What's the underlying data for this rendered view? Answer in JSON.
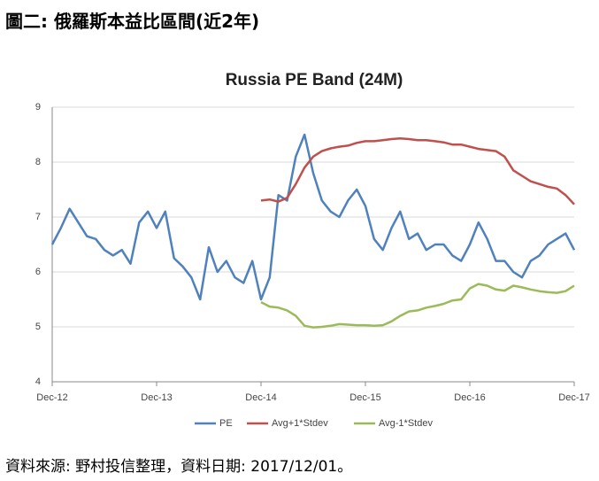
{
  "header": {
    "title": "圖二: 俄羅斯本益比區間(近2年)"
  },
  "chart_data": {
    "type": "line",
    "title": "Russia PE Band (24M)",
    "categories": [
      "Dec-12",
      null,
      null,
      null,
      null,
      null,
      null,
      null,
      null,
      null,
      null,
      null,
      "Dec-13",
      null,
      null,
      null,
      null,
      null,
      null,
      null,
      null,
      null,
      null,
      null,
      "Dec-14",
      null,
      null,
      null,
      null,
      null,
      null,
      null,
      null,
      null,
      null,
      null,
      "Dec-15",
      null,
      null,
      null,
      null,
      null,
      null,
      null,
      null,
      null,
      null,
      null,
      "Dec-16",
      null,
      null,
      null,
      null,
      null,
      null,
      null,
      null,
      null,
      null,
      null,
      "Dec-17"
    ],
    "ylim": [
      4,
      9
    ],
    "yticks": [
      4,
      5,
      6,
      7,
      8,
      9
    ],
    "grid": true,
    "legend": "bottom",
    "series": [
      {
        "name": "PE",
        "color": "#4f81bd",
        "values": [
          6.5,
          6.8,
          7.15,
          6.9,
          6.65,
          6.6,
          6.4,
          6.3,
          6.4,
          6.15,
          6.9,
          7.1,
          6.8,
          7.1,
          6.25,
          6.1,
          5.9,
          5.5,
          6.45,
          6.0,
          6.2,
          5.9,
          5.8,
          6.2,
          5.5,
          5.9,
          7.4,
          7.3,
          8.1,
          8.5,
          7.8,
          7.3,
          7.1,
          7.0,
          7.3,
          7.5,
          7.2,
          6.6,
          6.4,
          6.8,
          7.1,
          6.6,
          6.7,
          6.4,
          6.5,
          6.5,
          6.3,
          6.2,
          6.5,
          6.9,
          6.6,
          6.2,
          6.2,
          6.0,
          5.9,
          6.2,
          6.3,
          6.5,
          6.6,
          6.7,
          6.4
        ]
      },
      {
        "name": "Avg+1*Stdev",
        "color": "#c0504d",
        "values": [
          null,
          null,
          null,
          null,
          null,
          null,
          null,
          null,
          null,
          null,
          null,
          null,
          null,
          null,
          null,
          null,
          null,
          null,
          null,
          null,
          null,
          null,
          null,
          null,
          7.3,
          7.32,
          7.28,
          7.35,
          7.6,
          7.9,
          8.1,
          8.2,
          8.25,
          8.28,
          8.3,
          8.35,
          8.38,
          8.38,
          8.4,
          8.42,
          8.43,
          8.42,
          8.4,
          8.4,
          8.38,
          8.36,
          8.32,
          8.32,
          8.28,
          8.24,
          8.22,
          8.2,
          8.1,
          7.85,
          7.75,
          7.65,
          7.6,
          7.55,
          7.52,
          7.4,
          7.23
        ]
      },
      {
        "name": "Avg-1*Stdev",
        "color": "#9bbb59",
        "values": [
          null,
          null,
          null,
          null,
          null,
          null,
          null,
          null,
          null,
          null,
          null,
          null,
          null,
          null,
          null,
          null,
          null,
          null,
          null,
          null,
          null,
          null,
          null,
          null,
          5.45,
          5.37,
          5.35,
          5.3,
          5.2,
          5.02,
          4.99,
          5.0,
          5.02,
          5.05,
          5.04,
          5.03,
          5.03,
          5.02,
          5.03,
          5.1,
          5.2,
          5.28,
          5.3,
          5.35,
          5.38,
          5.42,
          5.48,
          5.5,
          5.7,
          5.78,
          5.75,
          5.68,
          5.66,
          5.75,
          5.72,
          5.68,
          5.65,
          5.63,
          5.62,
          5.65,
          5.75
        ]
      }
    ]
  },
  "footer": {
    "source": "資料來源: 野村投信整理，資料日期: 2017/12/01。"
  }
}
